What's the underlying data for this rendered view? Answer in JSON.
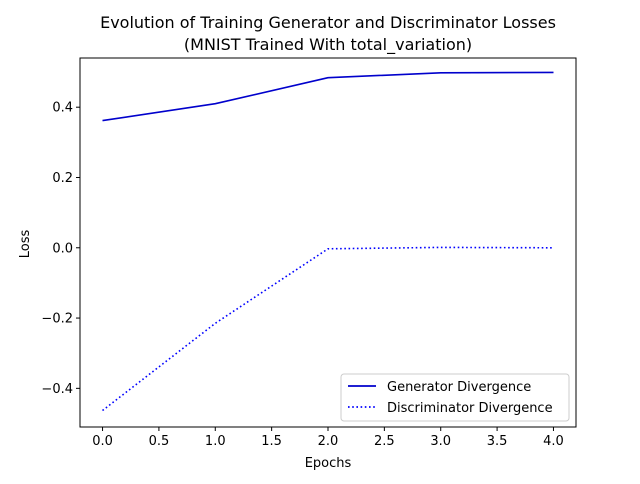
{
  "chart_data": {
    "type": "line",
    "title": "Evolution of Training Generator and Discriminator Losses",
    "subtitle": "(MNIST Trained With total_variation)",
    "xlabel": "Epochs",
    "ylabel": "Loss",
    "xlim": [
      -0.2,
      4.2
    ],
    "ylim": [
      -0.51,
      0.54
    ],
    "x_ticks": [
      0.0,
      0.5,
      1.0,
      1.5,
      2.0,
      2.5,
      3.0,
      3.5,
      4.0
    ],
    "x_tick_labels": [
      "0.0",
      "0.5",
      "1.0",
      "1.5",
      "2.0",
      "2.5",
      "3.0",
      "3.5",
      "4.0"
    ],
    "y_ticks": [
      -0.4,
      -0.2,
      0.0,
      0.2,
      0.4
    ],
    "y_tick_labels": [
      "−0.4",
      "−0.2",
      "0.0",
      "0.2",
      "0.4"
    ],
    "grid": false,
    "legend_position": "lower right",
    "x": [
      0,
      1,
      2,
      3,
      4
    ],
    "series": [
      {
        "name": "Generator Divergence",
        "values": [
          0.362,
          0.41,
          0.484,
          0.498,
          0.499
        ],
        "color": "#0000cc",
        "line_style": "solid"
      },
      {
        "name": "Discriminator Divergence",
        "values": [
          -0.463,
          -0.215,
          -0.003,
          0.001,
          0.0
        ],
        "color": "#0000ff",
        "line_style": "dotted"
      }
    ]
  }
}
